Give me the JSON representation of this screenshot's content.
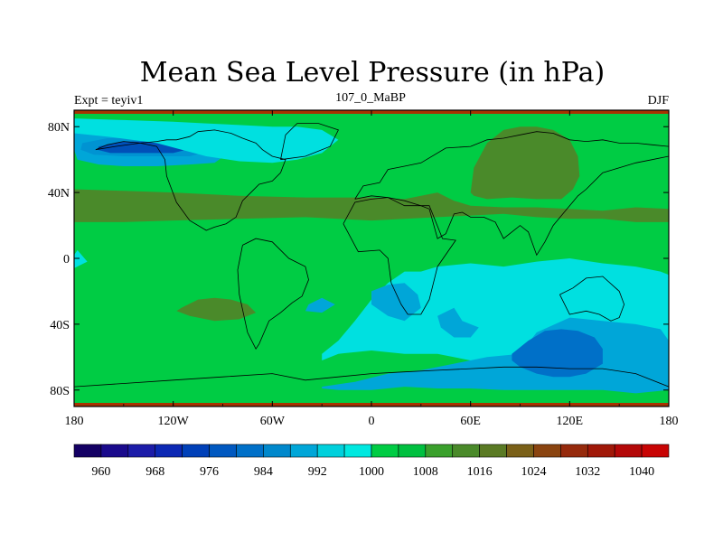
{
  "figure": {
    "title": "Mean Sea Level Pressure (in hPa)",
    "left_string": "Expt = teyiv1",
    "center_string": "107_0_MaBP",
    "right_string": "DJF"
  },
  "map": {
    "variable": "mean sea level pressure",
    "units": "hPa",
    "projection": "cylindrical equidistant",
    "lon_range": [
      -180,
      180
    ],
    "lat_range": [
      -90,
      90
    ],
    "x_ticks": [
      {
        "value": -180,
        "label": "180"
      },
      {
        "value": -120,
        "label": "120W"
      },
      {
        "value": -60,
        "label": "60W"
      },
      {
        "value": 0,
        "label": "0"
      },
      {
        "value": 60,
        "label": "60E"
      },
      {
        "value": 120,
        "label": "120E"
      },
      {
        "value": 180,
        "label": "180"
      }
    ],
    "y_ticks": [
      {
        "value": 80,
        "label": "80N"
      },
      {
        "value": 40,
        "label": "40N"
      },
      {
        "value": 0,
        "label": "0"
      },
      {
        "value": -40,
        "label": "40S"
      },
      {
        "value": -80,
        "label": "80S"
      }
    ],
    "background_level_color": "#00cc44",
    "regions": [
      {
        "name": "n-pacific-low-outer",
        "color": "#00a6d8",
        "lon": [
          -180,
          -178,
          -170,
          -155,
          -140,
          -120,
          -100,
          -90,
          -88,
          -95,
          -110,
          -130,
          -150,
          -165,
          -178,
          -180
        ],
        "lat": [
          78,
          80,
          79,
          78,
          78,
          77,
          73,
          68,
          63,
          58,
          57,
          56,
          56,
          57,
          60,
          66
        ]
      },
      {
        "name": "n-pacific-low-mid",
        "color": "#0093d2",
        "lon": [
          -175,
          -160,
          -140,
          -120,
          -100,
          -95,
          -110,
          -130,
          -150,
          -168,
          -176
        ],
        "lat": [
          70,
          73,
          73,
          72,
          70,
          66,
          62,
          62,
          62,
          63,
          66
        ]
      },
      {
        "name": "n-pacific-low-core",
        "color": "#0050b8",
        "lon": [
          -165,
          -150,
          -130,
          -115,
          -108,
          -120,
          -140,
          -158,
          -166
        ],
        "lat": [
          68,
          71,
          71,
          70,
          67,
          64,
          64,
          64,
          66
        ]
      },
      {
        "name": "arctic-cyan",
        "color": "#00e0e0",
        "lon": [
          -180,
          -150,
          -120,
          -100,
          -80,
          -60,
          -45,
          -30,
          -20,
          -30,
          -45,
          -60,
          -80,
          -100,
          -130,
          -160,
          -180
        ],
        "lat": [
          85,
          84,
          83,
          82,
          81,
          80,
          80,
          78,
          72,
          64,
          60,
          58,
          59,
          62,
          70,
          74,
          76
        ]
      },
      {
        "name": "n-hemisphere-ridge",
        "color": "#4a8a2a",
        "lon": [
          -180,
          -150,
          -120,
          -80,
          -40,
          -20,
          0,
          20,
          40,
          50,
          60,
          80,
          100,
          120,
          140,
          160,
          180,
          180,
          160,
          140,
          120,
          100,
          80,
          60,
          40,
          20,
          0,
          -20,
          -40,
          -80,
          -120,
          -150,
          -180
        ],
        "lat": [
          42,
          41,
          40,
          38,
          37,
          37,
          37,
          36,
          40,
          35,
          32,
          31,
          31,
          30,
          29,
          31,
          30,
          22,
          22,
          24,
          24,
          25,
          27,
          26,
          25,
          24,
          23,
          24,
          25,
          24,
          23,
          22,
          22
        ]
      },
      {
        "name": "asia-high",
        "color": "#4a8a2a",
        "lon": [
          60,
          62,
          70,
          80,
          90,
          100,
          110,
          120,
          125,
          126,
          122,
          115,
          100,
          85,
          70,
          62
        ],
        "lat": [
          40,
          55,
          70,
          78,
          80,
          80,
          78,
          72,
          62,
          50,
          42,
          36,
          36,
          37,
          36,
          38
        ]
      },
      {
        "name": "s-ridge",
        "color": "#4a8a2a",
        "lon": [
          -115,
          -105,
          -95,
          -85,
          -75,
          -70,
          -80,
          -95,
          -110,
          -118
        ],
        "lat": [
          -30,
          -25,
          -24,
          -25,
          -28,
          -33,
          -37,
          -38,
          -35,
          -32
        ]
      },
      {
        "name": "tropical-cyan",
        "color": "#00e0e0",
        "lon": [
          -30,
          -20,
          -10,
          0,
          10,
          20,
          30,
          40,
          60,
          80,
          100,
          120,
          140,
          160,
          175,
          180,
          180,
          175,
          160,
          140,
          120,
          100,
          80,
          60,
          40,
          20,
          0,
          -20,
          -30
        ],
        "lat": [
          -58,
          -50,
          -38,
          -25,
          -15,
          -8,
          -8,
          -5,
          -3,
          -5,
          -2,
          0,
          -3,
          -5,
          -8,
          -10,
          -65,
          -66,
          -64,
          -63,
          -62,
          -62,
          -63,
          -62,
          -58,
          -58,
          -56,
          -58,
          -62
        ]
      },
      {
        "name": "west-cyan",
        "color": "#00e0e0",
        "lon": [
          -180,
          -178,
          -172,
          -180
        ],
        "lat": [
          2,
          5,
          -2,
          -6
        ]
      },
      {
        "name": "s-ocean-low-outer",
        "color": "#00a6d8",
        "lon": [
          -30,
          -10,
          10,
          30,
          50,
          70,
          90,
          100,
          120,
          140,
          160,
          175,
          180,
          180,
          160,
          140,
          120,
          100,
          80,
          60,
          40,
          20,
          0,
          -20,
          -30
        ],
        "lat": [
          -78,
          -75,
          -70,
          -68,
          -64,
          -60,
          -58,
          -45,
          -36,
          -38,
          -40,
          -43,
          -50,
          -80,
          -82,
          -80,
          -80,
          -80,
          -80,
          -79,
          -79,
          -78,
          -80,
          -80,
          -79
        ]
      },
      {
        "name": "s-ocean-low-core",
        "color": "#0070c8",
        "lon": [
          85,
          95,
          105,
          115,
          125,
          135,
          140,
          140,
          130,
          120,
          110,
          100,
          90,
          85
        ],
        "lat": [
          -58,
          -50,
          -44,
          -43,
          -44,
          -48,
          -55,
          -64,
          -70,
          -72,
          -72,
          -70,
          -66,
          -62
        ]
      },
      {
        "name": "s-africa-blue",
        "color": "#00a6d8",
        "lon": [
          0,
          10,
          20,
          28,
          30,
          20,
          10,
          0
        ],
        "lat": [
          -20,
          -16,
          -15,
          -22,
          -30,
          -38,
          -35,
          -28
        ]
      },
      {
        "name": "s-atlantic-blue",
        "color": "#00a6d8",
        "lon": [
          -38,
          -30,
          -22,
          -30,
          -40
        ],
        "lat": [
          -28,
          -24,
          -28,
          -33,
          -32
        ]
      },
      {
        "name": "indian-blue",
        "color": "#00a6d8",
        "lon": [
          40,
          50,
          55,
          65,
          60,
          50,
          42
        ],
        "lat": [
          -35,
          -30,
          -38,
          -42,
          -48,
          -48,
          -42
        ]
      }
    ],
    "coastlines": [
      {
        "lon": [
          -167,
          -160,
          -150,
          -140,
          -130,
          -125,
          -124,
          -118,
          -110,
          -100,
          -95,
          -88,
          -82,
          -80,
          -78,
          -72,
          -68,
          -60,
          -55,
          -52,
          -60,
          -66,
          -70,
          -78,
          -85,
          -95,
          -105,
          -110,
          -118,
          -124,
          -130,
          -140,
          -155,
          -167
        ],
        "lat": [
          66,
          69,
          71,
          70,
          68,
          60,
          50,
          34,
          23,
          17,
          19,
          21,
          25,
          30,
          35,
          41,
          45,
          47,
          52,
          60,
          62,
          66,
          70,
          73,
          76,
          78,
          77,
          74,
          72,
          72,
          71,
          70,
          68,
          66
        ]
      },
      {
        "lon": [
          -78,
          -70,
          -60,
          -50,
          -40,
          -38,
          -42,
          -48,
          -55,
          -62,
          -65,
          -68,
          -70,
          -75,
          -80,
          -81,
          -78
        ],
        "lat": [
          8,
          12,
          10,
          0,
          -5,
          -13,
          -23,
          -27,
          -33,
          -38,
          -45,
          -52,
          -55,
          -45,
          -22,
          -7,
          8
        ]
      },
      {
        "lon": [
          -55,
          -40,
          -25,
          -20,
          -32,
          -45,
          -52,
          -55
        ],
        "lat": [
          60,
          62,
          68,
          78,
          82,
          82,
          75,
          60
        ]
      },
      {
        "lon": [
          -10,
          -5,
          5,
          10,
          20,
          30,
          45,
          60,
          70,
          80,
          90,
          100,
          110,
          120,
          130,
          140,
          150,
          160,
          170,
          180,
          180,
          170,
          160,
          150,
          140,
          130,
          125,
          120,
          110,
          105,
          100,
          95,
          90,
          80,
          75,
          68,
          60,
          55,
          50,
          45,
          40,
          35,
          30,
          20,
          10,
          0,
          -10
        ],
        "lat": [
          36,
          44,
          46,
          54,
          56,
          58,
          67,
          68,
          72,
          73,
          75,
          77,
          76,
          72,
          71,
          72,
          70,
          70,
          69,
          68,
          62,
          60,
          58,
          55,
          52,
          42,
          38,
          32,
          20,
          10,
          2,
          16,
          20,
          12,
          22,
          25,
          25,
          28,
          27,
          15,
          12,
          30,
          32,
          35,
          37,
          38,
          36
        ]
      },
      {
        "lon": [
          -17,
          -10,
          0,
          10,
          20,
          35,
          43,
          51,
          40,
          35,
          30,
          22,
          18,
          12,
          10,
          5,
          -8,
          -17
        ],
        "lat": [
          21,
          34,
          36,
          37,
          32,
          32,
          12,
          11,
          -5,
          -25,
          -34,
          -34,
          -28,
          -15,
          0,
          5,
          4,
          21
        ]
      },
      {
        "lon": [
          114,
          122,
          130,
          140,
          150,
          153,
          150,
          145,
          138,
          130,
          120,
          114
        ],
        "lat": [
          -22,
          -18,
          -12,
          -11,
          -20,
          -28,
          -36,
          -38,
          -34,
          -32,
          -34,
          -22
        ]
      },
      {
        "lon": [
          -180,
          -150,
          -120,
          -90,
          -60,
          -40,
          -20,
          0,
          20,
          40,
          60,
          80,
          100,
          120,
          140,
          160,
          180
        ],
        "lat": [
          -78,
          -76,
          -74,
          -72,
          -70,
          -74,
          -72,
          -70,
          -69,
          -68,
          -67,
          -66,
          -66,
          -67,
          -67,
          -70,
          -78
        ]
      }
    ]
  },
  "colorbar": {
    "levels": [
      956,
      960,
      964,
      968,
      972,
      976,
      980,
      984,
      988,
      992,
      996,
      1000,
      1004,
      1008,
      1012,
      1016,
      1020,
      1024,
      1028,
      1032,
      1036,
      1040,
      1044
    ],
    "colors": [
      "#140064",
      "#1a0a8c",
      "#1c1ca8",
      "#0c28b4",
      "#0040b8",
      "#0058c0",
      "#0070c8",
      "#0088cc",
      "#00a6d8",
      "#00d0dc",
      "#00e8e0",
      "#00cc44",
      "#00c040",
      "#3aa02c",
      "#4a8a2a",
      "#5a7a24",
      "#7a6018",
      "#8a4410",
      "#962a0c",
      "#a01808",
      "#b40808",
      "#c80404"
    ],
    "labels": [
      {
        "value": 960,
        "text": "960"
      },
      {
        "value": 968,
        "text": "968"
      },
      {
        "value": 976,
        "text": "976"
      },
      {
        "value": 984,
        "text": "984"
      },
      {
        "value": 992,
        "text": "992"
      },
      {
        "value": 1000,
        "text": "1000"
      },
      {
        "value": 1008,
        "text": "1008"
      },
      {
        "value": 1016,
        "text": "1016"
      },
      {
        "value": 1024,
        "text": "1024"
      },
      {
        "value": 1032,
        "text": "1032"
      },
      {
        "value": 1040,
        "text": "1040"
      }
    ]
  }
}
